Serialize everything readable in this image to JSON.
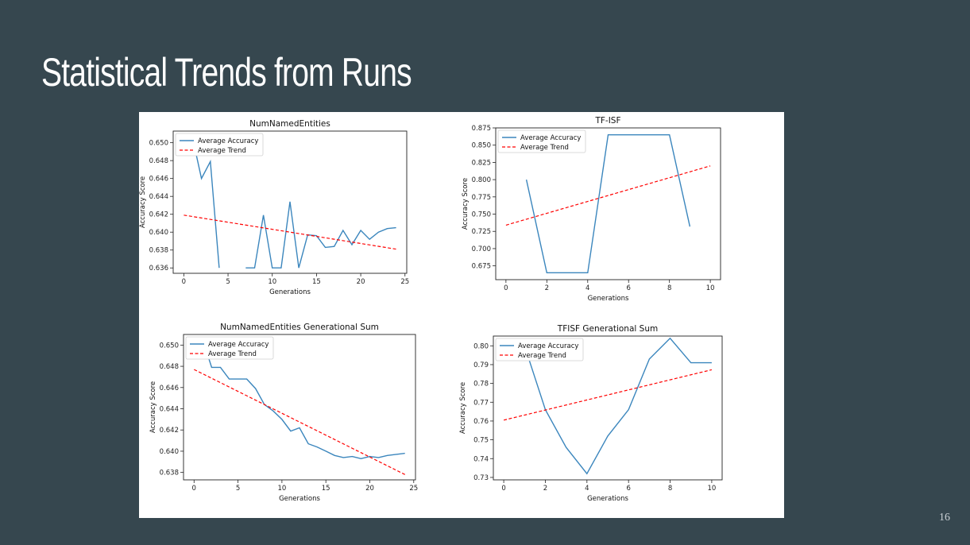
{
  "slide": {
    "title": "Statistical Trends from Runs",
    "page_number": "16"
  },
  "colors": {
    "background": "#36474f",
    "accuracy_line": "#3b86bd",
    "trend_line": "#ff0000"
  },
  "chart_data": [
    {
      "id": "numnamed",
      "type": "line",
      "title": "NumNamedEntities",
      "xlabel": "Generations",
      "ylabel": "Accuracy Score",
      "xlim": [
        -1.2,
        25.2
      ],
      "ylim": [
        0.6354,
        0.6513
      ],
      "xticks": [
        0,
        5,
        10,
        15,
        20,
        25
      ],
      "xticklabels": [
        "0",
        "5",
        "10",
        "15",
        "20",
        "25"
      ],
      "yticks": [
        0.636,
        0.638,
        0.64,
        0.642,
        0.644,
        0.646,
        0.648,
        0.65
      ],
      "yticklabels": [
        "0.636",
        "0.638",
        "0.640",
        "0.642",
        "0.644",
        "0.646",
        "0.648",
        "0.650"
      ],
      "legend_position": "upper-left",
      "grid": false,
      "series": [
        {
          "name": "Average Accuracy",
          "style": "solid",
          "segments": [
            {
              "x": [
                1,
                2,
                3,
                4
              ],
              "y": [
                0.6505,
                0.646,
                0.6479,
                0.636
              ]
            },
            {
              "x": [
                7,
                8,
                9,
                10,
                11,
                12,
                13,
                14,
                15,
                16,
                17,
                18,
                19,
                20,
                21,
                22,
                23,
                24
              ],
              "y": [
                0.636,
                0.636,
                0.6419,
                0.636,
                0.636,
                0.6434,
                0.636,
                0.6397,
                0.6396,
                0.6383,
                0.6384,
                0.6402,
                0.6386,
                0.6402,
                0.6392,
                0.64,
                0.6404,
                0.6405
              ]
            }
          ]
        },
        {
          "name": "Average Trend",
          "style": "dashed",
          "segments": [
            {
              "x": [
                0,
                24
              ],
              "y": [
                0.6419,
                0.6381
              ]
            }
          ]
        }
      ]
    },
    {
      "id": "tfisf",
      "type": "line",
      "title": "TF-ISF",
      "xlabel": "Generations",
      "ylabel": "Accuracy Score",
      "xlim": [
        -0.5,
        10.5
      ],
      "ylim": [
        0.655,
        0.875
      ],
      "xticks": [
        0,
        2,
        4,
        6,
        8,
        10
      ],
      "xticklabels": [
        "0",
        "2",
        "4",
        "6",
        "8",
        "10"
      ],
      "yticks": [
        0.675,
        0.7,
        0.725,
        0.75,
        0.775,
        0.8,
        0.825,
        0.85,
        0.875
      ],
      "yticklabels": [
        "0.675",
        "0.700",
        "0.725",
        "0.750",
        "0.775",
        "0.800",
        "0.825",
        "0.850",
        "0.875"
      ],
      "legend_position": "upper-left",
      "grid": false,
      "series": [
        {
          "name": "Average Accuracy",
          "style": "solid",
          "segments": [
            {
              "x": [
                1,
                2,
                3,
                4,
                5,
                6,
                7,
                8,
                9
              ],
              "y": [
                0.8,
                0.665,
                0.665,
                0.665,
                0.865,
                0.865,
                0.865,
                0.865,
                0.732
              ]
            }
          ]
        },
        {
          "name": "Average Trend",
          "style": "dashed",
          "segments": [
            {
              "x": [
                0,
                10
              ],
              "y": [
                0.734,
                0.82
              ]
            }
          ]
        }
      ]
    },
    {
      "id": "numnamedsum",
      "type": "line",
      "title": "NumNamedEntities Generational Sum",
      "xlabel": "Generations",
      "ylabel": "Accuracy Score",
      "xlim": [
        -1.2,
        25.2
      ],
      "ylim": [
        0.6373,
        0.651
      ],
      "xticks": [
        0,
        5,
        10,
        15,
        20,
        25
      ],
      "xticklabels": [
        "0",
        "5",
        "10",
        "15",
        "20",
        "25"
      ],
      "yticks": [
        0.638,
        0.64,
        0.642,
        0.644,
        0.646,
        0.648,
        0.65
      ],
      "yticklabels": [
        "0.638",
        "0.640",
        "0.642",
        "0.644",
        "0.646",
        "0.648",
        "0.650"
      ],
      "legend_position": "upper-left",
      "grid": false,
      "series": [
        {
          "name": "Average Accuracy",
          "style": "solid",
          "segments": [
            {
              "x": [
                1,
                2,
                3,
                4,
                5,
                6,
                7,
                8,
                9,
                10,
                11,
                12,
                13,
                14,
                15,
                16,
                17,
                18,
                19,
                20,
                21,
                22,
                23,
                24
              ],
              "y": [
                0.6505,
                0.6479,
                0.6479,
                0.6468,
                0.6468,
                0.6468,
                0.6459,
                0.6444,
                0.6438,
                0.643,
                0.6419,
                0.6422,
                0.6407,
                0.6404,
                0.64,
                0.6396,
                0.6394,
                0.6395,
                0.6393,
                0.6395,
                0.6394,
                0.6396,
                0.6397,
                0.6398
              ]
            }
          ]
        },
        {
          "name": "Average Trend",
          "style": "dashed",
          "segments": [
            {
              "x": [
                0,
                24
              ],
              "y": [
                0.6477,
                0.6378
              ]
            }
          ]
        }
      ]
    },
    {
      "id": "tfisfsum",
      "type": "line",
      "title": "TFISF Generational Sum",
      "xlabel": "Generations",
      "ylabel": "Accuracy Score",
      "xlim": [
        -0.5,
        10.5
      ],
      "ylim": [
        0.7287,
        0.8052
      ],
      "xticks": [
        0,
        2,
        4,
        6,
        8,
        10
      ],
      "xticklabels": [
        "0",
        "2",
        "4",
        "6",
        "8",
        "10"
      ],
      "yticks": [
        0.73,
        0.74,
        0.75,
        0.76,
        0.77,
        0.78,
        0.79,
        0.8
      ],
      "yticklabels": [
        "0.73",
        "0.74",
        "0.75",
        "0.76",
        "0.77",
        "0.78",
        "0.79",
        "0.80"
      ],
      "legend_position": "upper-left",
      "grid": false,
      "series": [
        {
          "name": "Average Accuracy",
          "style": "solid",
          "segments": [
            {
              "x": [
                1,
                2,
                3,
                4,
                5,
                6,
                7,
                8,
                9,
                10
              ],
              "y": [
                0.8,
                0.766,
                0.746,
                0.732,
                0.752,
                0.766,
                0.793,
                0.804,
                0.791,
                0.791
              ]
            }
          ]
        },
        {
          "name": "Average Trend",
          "style": "dashed",
          "segments": [
            {
              "x": [
                0,
                10
              ],
              "y": [
                0.7605,
                0.7873
              ]
            }
          ]
        }
      ]
    }
  ]
}
